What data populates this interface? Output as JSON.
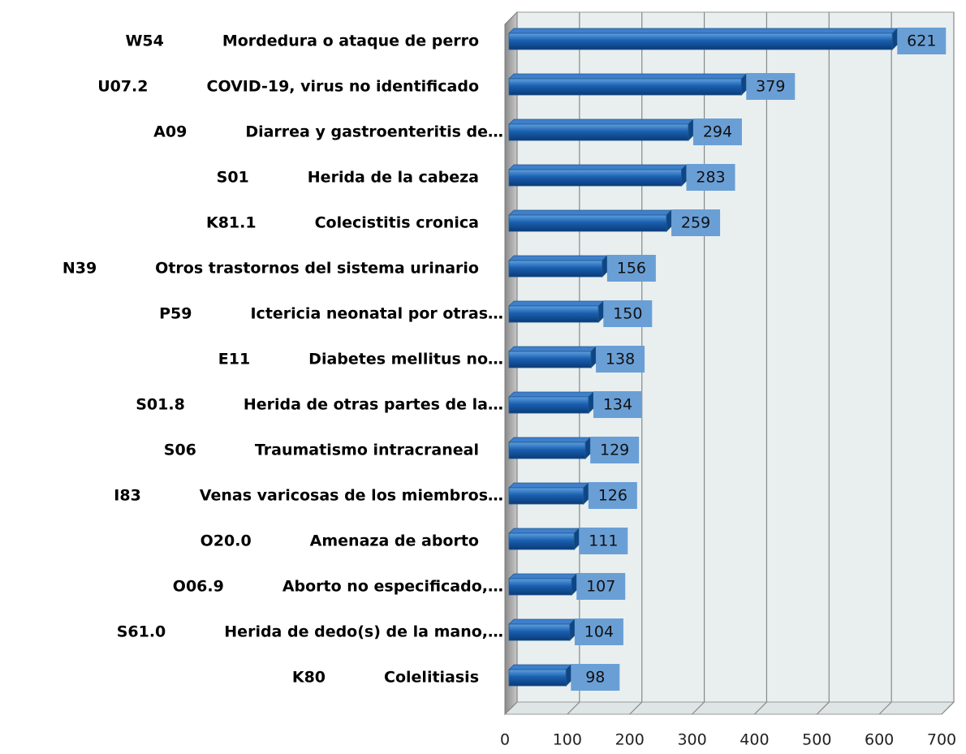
{
  "chart_data": {
    "type": "bar",
    "orientation": "horizontal",
    "codes": [
      "W54",
      "U07.2",
      "A09",
      "S01",
      "K81.1",
      "N39",
      "P59",
      "E11",
      "S01.8",
      "S06",
      "I83",
      "O20.0",
      "O06.9",
      "S61.0",
      "K80"
    ],
    "categories": [
      "Mordedura o ataque de perro",
      "COVID-19, virus no identificado",
      "Diarrea y gastroenteritis de…",
      "Herida de la cabeza",
      "Colecistitis cronica",
      "Otros trastornos del sistema urinario",
      "Ictericia neonatal por otras…",
      "Diabetes mellitus no…",
      "Herida de otras partes de la…",
      "Traumatismo intracraneal",
      "Venas varicosas de los miembros…",
      "Amenaza de aborto",
      "Aborto no especificado,…",
      "Herida de dedo(s) de la mano,…",
      "Colelitiasis"
    ],
    "values": [
      621,
      379,
      294,
      283,
      259,
      156,
      150,
      138,
      134,
      129,
      126,
      111,
      107,
      104,
      98
    ],
    "color": "#1a5fb0",
    "label_color": "#6a9fd6",
    "xlim": [
      0,
      700
    ],
    "xticks": [
      0,
      100,
      200,
      300,
      400,
      500,
      600,
      700
    ],
    "grid": true
  }
}
